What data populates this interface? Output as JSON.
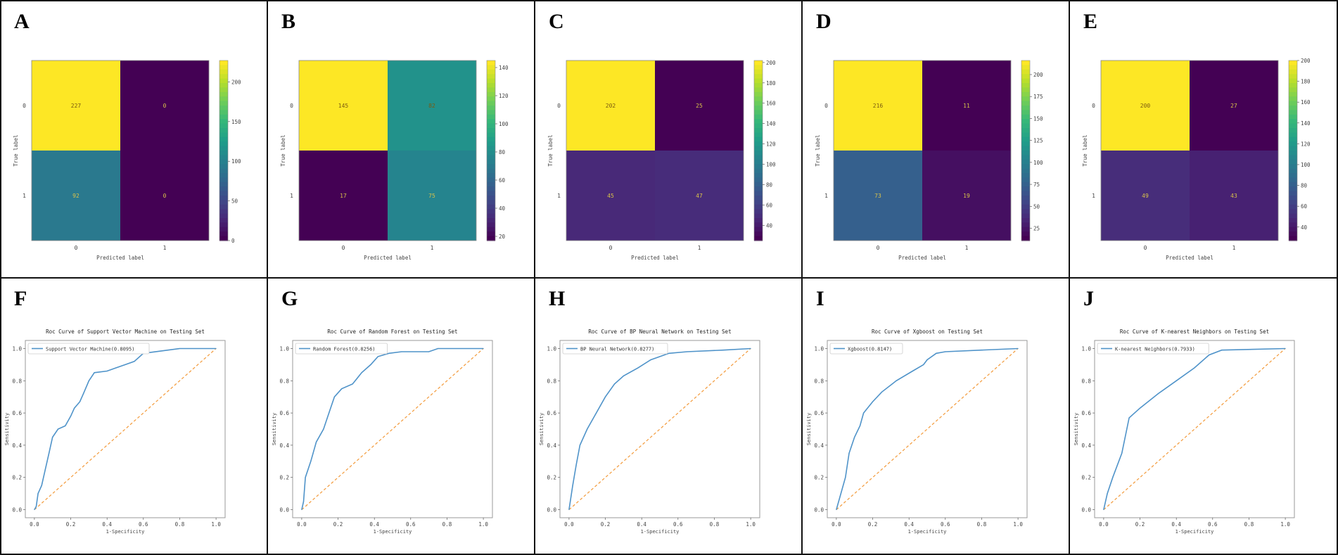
{
  "chart_data": [
    {
      "panel": "A",
      "type": "heatmap",
      "xlabel": "Predicted label",
      "ylabel": "True label",
      "x_ticks": [
        "0",
        "1"
      ],
      "y_ticks": [
        "0",
        "1"
      ],
      "values": [
        [
          227,
          0
        ],
        [
          92,
          0
        ]
      ],
      "colorbar_ticks": [
        0,
        50,
        100,
        150,
        200
      ],
      "colorbar_range": [
        0,
        227
      ]
    },
    {
      "panel": "B",
      "type": "heatmap",
      "xlabel": "Predicted label",
      "ylabel": "True label",
      "x_ticks": [
        "0",
        "1"
      ],
      "y_ticks": [
        "0",
        "1"
      ],
      "values": [
        [
          145,
          82
        ],
        [
          17,
          75
        ]
      ],
      "colorbar_ticks": [
        20,
        40,
        60,
        80,
        100,
        120,
        140
      ],
      "colorbar_range": [
        17,
        145
      ]
    },
    {
      "panel": "C",
      "type": "heatmap",
      "xlabel": "Predicted label",
      "ylabel": "True label",
      "x_ticks": [
        "0",
        "1"
      ],
      "y_ticks": [
        "0",
        "1"
      ],
      "values": [
        [
          202,
          25
        ],
        [
          45,
          47
        ]
      ],
      "colorbar_ticks": [
        40,
        60,
        80,
        100,
        120,
        140,
        160,
        180,
        200
      ],
      "colorbar_range": [
        25,
        202
      ]
    },
    {
      "panel": "D",
      "type": "heatmap",
      "xlabel": "Predicted label",
      "ylabel": "True label",
      "x_ticks": [
        "0",
        "1"
      ],
      "y_ticks": [
        "0",
        "1"
      ],
      "values": [
        [
          216,
          11
        ],
        [
          73,
          19
        ]
      ],
      "colorbar_ticks": [
        25,
        50,
        75,
        100,
        125,
        150,
        175,
        200
      ],
      "colorbar_range": [
        11,
        216
      ]
    },
    {
      "panel": "E",
      "type": "heatmap",
      "xlabel": "Predicted label",
      "ylabel": "True label",
      "x_ticks": [
        "0",
        "1"
      ],
      "y_ticks": [
        "0",
        "1"
      ],
      "values": [
        [
          200,
          27
        ],
        [
          49,
          43
        ]
      ],
      "colorbar_ticks": [
        40,
        60,
        80,
        100,
        120,
        140,
        160,
        180,
        200
      ],
      "colorbar_range": [
        27,
        200
      ]
    },
    {
      "panel": "F",
      "type": "line",
      "title": "Roc Curve of Support Vector Machine on Testing Set",
      "xlabel": "1-Specificity",
      "ylabel": "Sensitivity",
      "legend": "Support Vector Machine(0.8095)",
      "legend_position": "top-left",
      "xlim": [
        0,
        1
      ],
      "ylim": [
        0,
        1
      ],
      "ticks": [
        "0.0",
        "0.2",
        "0.4",
        "0.6",
        "0.8",
        "1.0"
      ],
      "x": [
        0,
        0.01,
        0.02,
        0.04,
        0.06,
        0.08,
        0.1,
        0.13,
        0.17,
        0.2,
        0.22,
        0.25,
        0.27,
        0.3,
        0.33,
        0.4,
        0.45,
        0.5,
        0.55,
        0.6,
        0.8,
        1
      ],
      "y": [
        0,
        0.02,
        0.1,
        0.15,
        0.25,
        0.35,
        0.45,
        0.5,
        0.52,
        0.58,
        0.63,
        0.67,
        0.72,
        0.8,
        0.85,
        0.86,
        0.88,
        0.9,
        0.92,
        0.97,
        1,
        1
      ]
    },
    {
      "panel": "G",
      "type": "line",
      "title": "Roc Curve of Random Forest on Testing Set",
      "xlabel": "1-Specificity",
      "ylabel": "Sensitivity",
      "legend": "Random Forest(0.8256)",
      "legend_position": "top-left",
      "xlim": [
        0,
        1
      ],
      "ylim": [
        0,
        1
      ],
      "ticks": [
        "0.0",
        "0.2",
        "0.4",
        "0.6",
        "0.8",
        "1.0"
      ],
      "x": [
        0,
        0.01,
        0.02,
        0.05,
        0.08,
        0.12,
        0.15,
        0.18,
        0.22,
        0.28,
        0.33,
        0.38,
        0.42,
        0.48,
        0.55,
        0.7,
        0.75,
        1
      ],
      "y": [
        0,
        0.05,
        0.2,
        0.3,
        0.42,
        0.5,
        0.6,
        0.7,
        0.75,
        0.78,
        0.85,
        0.9,
        0.95,
        0.97,
        0.98,
        0.98,
        1,
        1
      ]
    },
    {
      "panel": "H",
      "type": "line",
      "title": "Roc Curve of BP Neural Network on Testing Set",
      "xlabel": "1-Specificity",
      "ylabel": "Sensitivity",
      "legend": "BP Neural Network(0.8277)",
      "legend_position": "top-left",
      "xlim": [
        0,
        1
      ],
      "ylim": [
        0,
        1
      ],
      "ticks": [
        "0.0",
        "0.2",
        "0.4",
        "0.6",
        "0.8",
        "1.0"
      ],
      "x": [
        0,
        0.02,
        0.04,
        0.06,
        0.1,
        0.15,
        0.2,
        0.25,
        0.3,
        0.38,
        0.45,
        0.55,
        0.65,
        0.85,
        1
      ],
      "y": [
        0,
        0.15,
        0.28,
        0.4,
        0.5,
        0.6,
        0.7,
        0.78,
        0.83,
        0.88,
        0.93,
        0.97,
        0.98,
        0.99,
        1
      ]
    },
    {
      "panel": "I",
      "type": "line",
      "title": "Roc Curve of Xgboost on Testing Set",
      "xlabel": "1-Specificity",
      "ylabel": "Sensitivity",
      "legend": "Xgboost(0.8147)",
      "legend_position": "top-left",
      "xlim": [
        0,
        1
      ],
      "ylim": [
        0,
        1
      ],
      "ticks": [
        "0.0",
        "0.2",
        "0.4",
        "0.6",
        "0.8",
        "1.0"
      ],
      "x": [
        0,
        0.05,
        0.07,
        0.1,
        0.13,
        0.15,
        0.2,
        0.25,
        0.33,
        0.42,
        0.48,
        0.5,
        0.55,
        0.6,
        0.8,
        1
      ],
      "y": [
        0,
        0.2,
        0.35,
        0.45,
        0.52,
        0.6,
        0.67,
        0.73,
        0.8,
        0.86,
        0.9,
        0.93,
        0.97,
        0.98,
        0.99,
        1
      ]
    },
    {
      "panel": "J",
      "type": "line",
      "title": "Roc Curve of K-nearest Neighbors on Testing Set",
      "xlabel": "1-Specificity",
      "ylabel": "Sensitivity",
      "legend": "K-nearest Neighbors(0.7933)",
      "legend_position": "top-left",
      "xlim": [
        0,
        1
      ],
      "ylim": [
        0,
        1
      ],
      "ticks": [
        "0.0",
        "0.2",
        "0.4",
        "0.6",
        "0.8",
        "1.0"
      ],
      "x": [
        0,
        0.02,
        0.05,
        0.1,
        0.14,
        0.2,
        0.3,
        0.4,
        0.5,
        0.58,
        0.65,
        1
      ],
      "y": [
        0,
        0.1,
        0.2,
        0.35,
        0.57,
        0.63,
        0.72,
        0.8,
        0.88,
        0.96,
        0.99,
        1
      ]
    }
  ],
  "colors": {
    "roc_line": "#4f93c9",
    "diagonal": "#f39a3a",
    "frame": "#999999"
  }
}
